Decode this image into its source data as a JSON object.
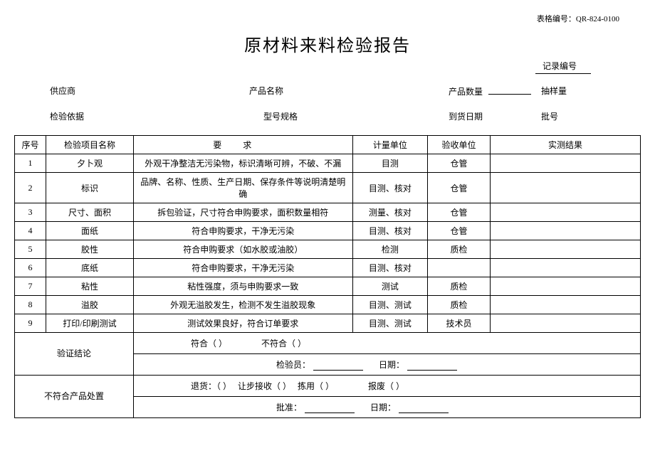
{
  "form_code_label": "表格编号：",
  "form_code_value": "QR-824-0100",
  "title": "原材料来料检验报告",
  "record_no_label": "记录编号",
  "header": {
    "supplier": "供应商",
    "product_name": "产品名称",
    "product_qty": "产品数量",
    "sample_qty": "抽样量",
    "inspect_basis": "检验依据",
    "model_spec": "型号规格",
    "arrival_date": "到货日期",
    "batch_no": "批号"
  },
  "columns": {
    "seq": "序号",
    "item": "检验项目名称",
    "req": "要求",
    "unit": "计量单位",
    "recv": "验收单位",
    "result": "实测结果"
  },
  "rows": [
    {
      "seq": "1",
      "item": "夕卜观",
      "req": "外观干净整洁无污染物，标识清晰可辨，不破、不漏",
      "unit": "目测",
      "recv": "仓管",
      "result": ""
    },
    {
      "seq": "2",
      "item": "标识",
      "req": "品牌、名称、性质、生产日期、保存条件等说明清楚明确",
      "unit": "目测、核对",
      "recv": "仓管",
      "result": ""
    },
    {
      "seq": "3",
      "item": "尺寸、面积",
      "req": "拆包验证，尺寸符合申购要求，面积数量相符",
      "unit": "测量、核对",
      "recv": "仓管",
      "result": ""
    },
    {
      "seq": "4",
      "item": "面纸",
      "req": "符合申购要求，干净无污染",
      "unit": "目测、核对",
      "recv": "仓管",
      "result": ""
    },
    {
      "seq": "5",
      "item": "胶性",
      "req": "符合申购要求（如水胶或油胶）",
      "unit": "检测",
      "recv": "质检",
      "result": ""
    },
    {
      "seq": "6",
      "item": "底纸",
      "req": "符合申购要求，干净无污染",
      "unit": "目测、核对",
      "recv": "",
      "result": ""
    },
    {
      "seq": "7",
      "item": "粘性",
      "req": "粘性强度，须与申购要求一致",
      "unit": "测试",
      "recv": "质检",
      "result": ""
    },
    {
      "seq": "8",
      "item": "溢胶",
      "req": "外观无溢胶发生，检测不发生溢胶现象",
      "unit": "目测、测试",
      "recv": "质检",
      "result": ""
    },
    {
      "seq": "9",
      "item": "打印/印刷测试",
      "req": "测试效果良好，符合订单要求",
      "unit": "目测、测试",
      "recv": "技术员",
      "result": ""
    }
  ],
  "verdict": {
    "label": "验证结论",
    "pass": "符合（ ）",
    "fail": "不符合（ ）"
  },
  "sign": {
    "inspector": "检验员：",
    "date": "日期："
  },
  "disposition": {
    "label": "不符合产品处置",
    "return": "退货：（ ）",
    "conc": "让步接收（ ）",
    "use": "拣用（ ）",
    "scrap": "报废（ ）",
    "approver": "批准：",
    "date": "日期："
  }
}
